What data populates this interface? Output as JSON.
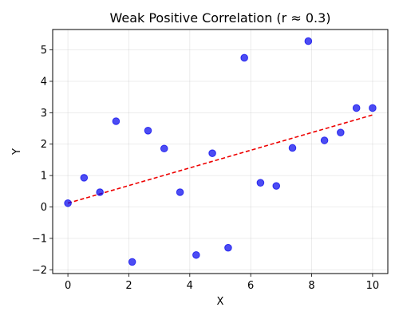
{
  "chart_data": {
    "type": "scatter",
    "title": "Weak Positive Correlation (r ≈ 0.3)",
    "xlabel": "X",
    "ylabel": "Y",
    "xlim": [
      -0.5,
      10.5
    ],
    "ylim": [
      -2.12,
      5.65
    ],
    "grid": true,
    "x_ticks": [
      0,
      2,
      4,
      6,
      8,
      10
    ],
    "y_ticks": [
      -2,
      -1,
      0,
      1,
      2,
      3,
      4,
      5
    ],
    "x_tick_labels": [
      "0",
      "2",
      "4",
      "6",
      "8",
      "10"
    ],
    "y_tick_labels": [
      "−2",
      "−1",
      "0",
      "1",
      "2",
      "3",
      "4",
      "5"
    ],
    "point_color": "#0000ee",
    "trend_color": "#ee0000",
    "series": [
      {
        "x": [
          0.0,
          0.53,
          1.05,
          1.58,
          2.11,
          2.63,
          3.16,
          3.68,
          4.21,
          4.74,
          5.26,
          5.79,
          6.32,
          6.84,
          7.37,
          7.89,
          8.42,
          8.95,
          9.47,
          10.0
        ],
        "y": [
          0.12,
          0.93,
          0.47,
          2.73,
          -1.75,
          2.43,
          1.86,
          0.47,
          -1.53,
          1.71,
          -1.3,
          4.75,
          0.77,
          0.67,
          1.88,
          5.28,
          2.12,
          2.37,
          3.15,
          3.15
        ]
      }
    ],
    "trend_line": {
      "style": "dashed",
      "x": [
        0,
        10
      ],
      "y": [
        0.12,
        2.93
      ]
    }
  }
}
